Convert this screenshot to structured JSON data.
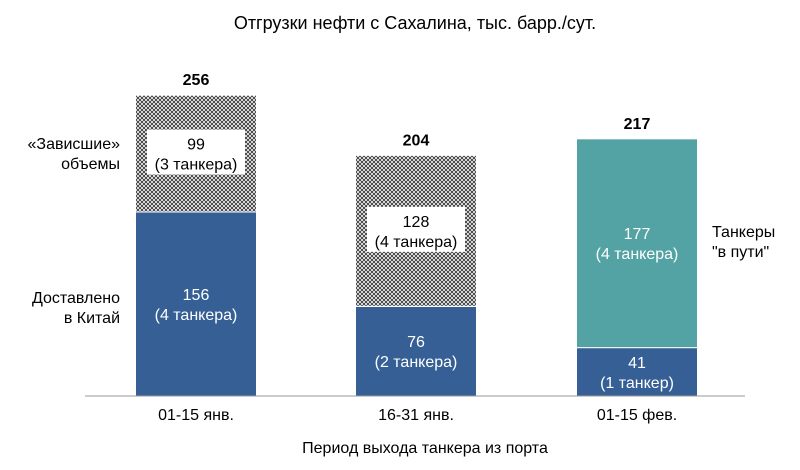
{
  "chart_data": {
    "type": "bar",
    "stacked": true,
    "title": "Отгрузки нефти с Сахалина, тыс. барр./сут.",
    "xlabel": "Период выхода танкера из порта",
    "categories": [
      "01-15 янв.",
      "16-31 янв.",
      "01-15 фев."
    ],
    "series": [
      {
        "name": "Доставлено в Китай",
        "label_lines": [
          "Доставлено",
          "в Китай"
        ],
        "color": "#355f95",
        "values": [
          156,
          76,
          41
        ],
        "sublabels": [
          "(4 танкера)",
          "(2 танкера)",
          "(1 танкер)"
        ]
      },
      {
        "name": "«Зависшие» объемы",
        "label_lines": [
          "«Зависшие»",
          "объемы"
        ],
        "color": "#333333",
        "pattern": "crosshatch",
        "values": [
          99,
          128,
          null
        ],
        "sublabels": [
          "(3 танкера)",
          "(4 танкера)",
          ""
        ]
      },
      {
        "name": "Танкеры \"в пути\"",
        "label_lines": [
          "Танкеры",
          "\"в пути\""
        ],
        "color": "#53a2a4",
        "values": [
          null,
          null,
          177
        ],
        "sublabels": [
          "",
          "",
          "(4 танкера)"
        ]
      }
    ],
    "totals": [
      256,
      204,
      217
    ],
    "ylim": [
      0,
      256
    ],
    "grid": false,
    "legend": "none"
  }
}
